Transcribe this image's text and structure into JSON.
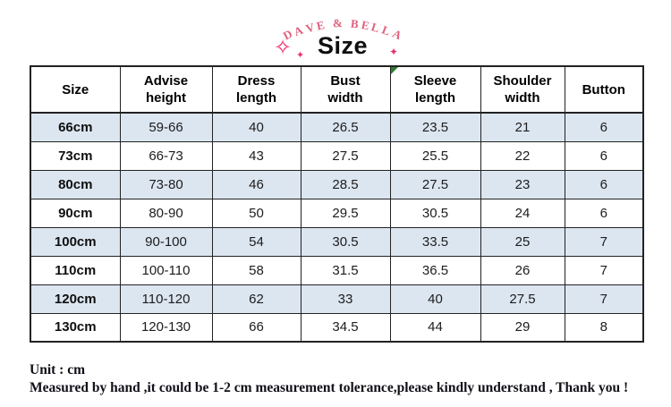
{
  "brand": "DAVE & BELLA",
  "title": "Size",
  "icons": {
    "sparkle_outline": "✧",
    "sparkle_filled": "✦",
    "comment_marker": "green-corner-triangle"
  },
  "chart_data": {
    "type": "table",
    "title": "Size",
    "columns": [
      "Size",
      "Advise\nheight",
      "Dress\nlength",
      "Bust\nwidth",
      "Sleeve\nlength",
      "Shoulder\nwidth",
      "Button"
    ],
    "rows": [
      [
        "66cm",
        "59-66",
        "40",
        "26.5",
        "23.5",
        "21",
        "6"
      ],
      [
        "73cm",
        "66-73",
        "43",
        "27.5",
        "25.5",
        "22",
        "6"
      ],
      [
        "80cm",
        "73-80",
        "46",
        "28.5",
        "27.5",
        "23",
        "6"
      ],
      [
        "90cm",
        "80-90",
        "50",
        "29.5",
        "30.5",
        "24",
        "6"
      ],
      [
        "100cm",
        "90-100",
        "54",
        "30.5",
        "33.5",
        "25",
        "7"
      ],
      [
        "110cm",
        "100-110",
        "58",
        "31.5",
        "36.5",
        "26",
        "7"
      ],
      [
        "120cm",
        "110-120",
        "62",
        "33",
        "40",
        "27.5",
        "7"
      ],
      [
        "130cm",
        "120-130",
        "66",
        "34.5",
        "44",
        "29",
        "8"
      ]
    ],
    "striped_rows": "odd rows light blue",
    "marker_column_index": 4
  },
  "footer": {
    "line1": "Unit : cm",
    "line2": "Measured by hand ,it could be 1-2 cm measurement tolerance,please kindly understand , Thank you !"
  },
  "colors": {
    "brand_pink": "#e0607e",
    "accent_pink": "#e8326f",
    "row_blue": "#dce6f1",
    "marker_green": "#2e7d32"
  }
}
